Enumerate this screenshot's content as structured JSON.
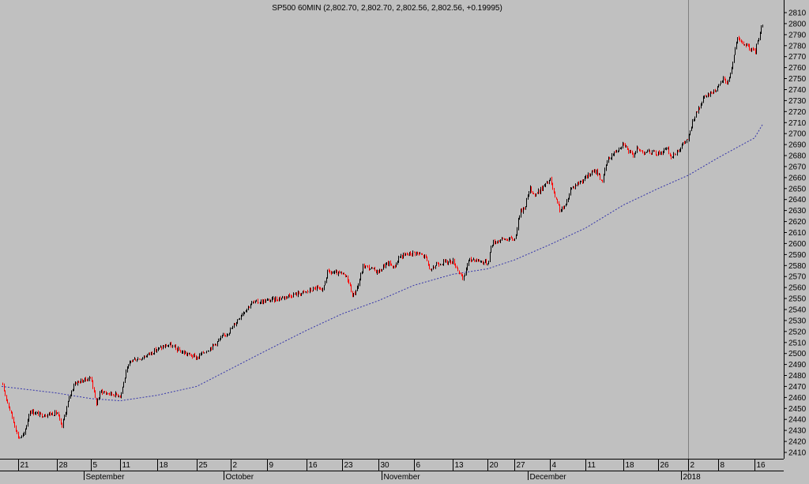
{
  "chart_data": {
    "type": "candlestick",
    "title": "SP500 60MIN (2,802.70, 2,802.70, 2,802.56, 2,802.56, +0.19995)",
    "xlabel": "",
    "ylabel": "",
    "ylim": [
      2410,
      2810
    ],
    "y_ticks": [
      2410,
      2420,
      2430,
      2440,
      2450,
      2460,
      2470,
      2480,
      2490,
      2500,
      2510,
      2520,
      2530,
      2540,
      2550,
      2560,
      2570,
      2580,
      2590,
      2600,
      2610,
      2620,
      2630,
      2640,
      2650,
      2660,
      2670,
      2680,
      2690,
      2700,
      2710,
      2720,
      2730,
      2740,
      2750,
      2760,
      2770,
      2780,
      2790,
      2800,
      2810
    ],
    "x_ticks": [
      {
        "date": "2017-08-21",
        "label": "21"
      },
      {
        "date": "2017-08-28",
        "label": "28"
      },
      {
        "date": "2017-09-05",
        "label": "5"
      },
      {
        "date": "2017-09-11",
        "label": "11"
      },
      {
        "date": "2017-09-18",
        "label": "18"
      },
      {
        "date": "2017-09-25",
        "label": "25"
      },
      {
        "date": "2017-10-02",
        "label": "2"
      },
      {
        "date": "2017-10-09",
        "label": "9"
      },
      {
        "date": "2017-10-16",
        "label": "16"
      },
      {
        "date": "2017-10-23",
        "label": "23"
      },
      {
        "date": "2017-10-30",
        "label": "30"
      },
      {
        "date": "2017-11-06",
        "label": "6"
      },
      {
        "date": "2017-11-13",
        "label": "13"
      },
      {
        "date": "2017-11-20",
        "label": "20"
      },
      {
        "date": "2017-11-27",
        "label": "27"
      },
      {
        "date": "2017-12-04",
        "label": "4"
      },
      {
        "date": "2017-12-11",
        "label": "11"
      },
      {
        "date": "2017-12-18",
        "label": "18"
      },
      {
        "date": "2017-12-26",
        "label": "26"
      },
      {
        "date": "2018-01-02",
        "label": "2"
      },
      {
        "date": "2018-01-08",
        "label": "8"
      },
      {
        "date": "2018-01-16",
        "label": "16"
      }
    ],
    "month_labels": [
      {
        "date": "2017-09-05",
        "label": "September"
      },
      {
        "date": "2017-10-02",
        "label": "October"
      },
      {
        "date": "2017-11-01",
        "label": "November"
      },
      {
        "date": "2017-12-01",
        "label": "December"
      },
      {
        "date": "2018-01-02",
        "label": "2018"
      }
    ],
    "vertical_marker_date": "2018-01-02",
    "grid": false,
    "colors": {
      "background": "#c0c0c0",
      "up": "#000000",
      "down": "#ff0000",
      "moving_average": "#3333aa",
      "axis": "#000000",
      "marker": "#808080"
    },
    "series": [
      {
        "name": "",
        "type": "candlestick",
        "close_path": [
          [
            "2017-08-18",
            2472
          ],
          [
            "2017-08-21",
            2423
          ],
          [
            "2017-08-22",
            2426
          ],
          [
            "2017-08-23",
            2448
          ],
          [
            "2017-08-25",
            2444
          ],
          [
            "2017-08-28",
            2446
          ],
          [
            "2017-08-29",
            2432
          ],
          [
            "2017-08-30",
            2448
          ],
          [
            "2017-08-31",
            2462
          ],
          [
            "2017-09-01",
            2473
          ],
          [
            "2017-09-05",
            2478
          ],
          [
            "2017-09-06",
            2454
          ],
          [
            "2017-09-07",
            2466
          ],
          [
            "2017-09-08",
            2464
          ],
          [
            "2017-09-11",
            2462
          ],
          [
            "2017-09-12",
            2482
          ],
          [
            "2017-09-13",
            2494
          ],
          [
            "2017-09-15",
            2496
          ],
          [
            "2017-09-18",
            2504
          ],
          [
            "2017-09-20",
            2508
          ],
          [
            "2017-09-22",
            2502
          ],
          [
            "2017-09-25",
            2496
          ],
          [
            "2017-09-26",
            2500
          ],
          [
            "2017-09-28",
            2506
          ],
          [
            "2017-10-02",
            2522
          ],
          [
            "2017-10-04",
            2536
          ],
          [
            "2017-10-06",
            2546
          ],
          [
            "2017-10-09",
            2548
          ],
          [
            "2017-10-11",
            2550
          ],
          [
            "2017-10-13",
            2553
          ],
          [
            "2017-10-16",
            2556
          ],
          [
            "2017-10-18",
            2560
          ],
          [
            "2017-10-19",
            2555
          ],
          [
            "2017-10-20",
            2574
          ],
          [
            "2017-10-23",
            2572
          ],
          [
            "2017-10-24",
            2568
          ],
          [
            "2017-10-25",
            2552
          ],
          [
            "2017-10-26",
            2562
          ],
          [
            "2017-10-27",
            2580
          ],
          [
            "2017-10-30",
            2574
          ],
          [
            "2017-10-31",
            2580
          ],
          [
            "2017-11-01",
            2582
          ],
          [
            "2017-11-02",
            2578
          ],
          [
            "2017-11-03",
            2588
          ],
          [
            "2017-11-06",
            2592
          ],
          [
            "2017-11-07",
            2590
          ],
          [
            "2017-11-08",
            2588
          ],
          [
            "2017-11-09",
            2574
          ],
          [
            "2017-11-10",
            2582
          ],
          [
            "2017-11-13",
            2584
          ],
          [
            "2017-11-14",
            2576
          ],
          [
            "2017-11-15",
            2566
          ],
          [
            "2017-11-16",
            2584
          ],
          [
            "2017-11-17",
            2586
          ],
          [
            "2017-11-20",
            2582
          ],
          [
            "2017-11-21",
            2600
          ],
          [
            "2017-11-22",
            2602
          ],
          [
            "2017-11-24",
            2604
          ],
          [
            "2017-11-27",
            2604
          ],
          [
            "2017-11-28",
            2628
          ],
          [
            "2017-11-29",
            2634
          ],
          [
            "2017-11-30",
            2650
          ],
          [
            "2017-12-01",
            2644
          ],
          [
            "2017-12-04",
            2658
          ],
          [
            "2017-12-05",
            2640
          ],
          [
            "2017-12-06",
            2630
          ],
          [
            "2017-12-07",
            2634
          ],
          [
            "2017-12-08",
            2650
          ],
          [
            "2017-12-11",
            2660
          ],
          [
            "2017-12-12",
            2664
          ],
          [
            "2017-12-13",
            2666
          ],
          [
            "2017-12-14",
            2656
          ],
          [
            "2017-12-15",
            2676
          ],
          [
            "2017-12-18",
            2692
          ],
          [
            "2017-12-19",
            2684
          ],
          [
            "2017-12-20",
            2680
          ],
          [
            "2017-12-21",
            2686
          ],
          [
            "2017-12-22",
            2684
          ],
          [
            "2017-12-26",
            2682
          ],
          [
            "2017-12-27",
            2684
          ],
          [
            "2017-12-28",
            2686
          ],
          [
            "2017-12-29",
            2678
          ],
          [
            "2018-01-02",
            2696
          ],
          [
            "2018-01-03",
            2714
          ],
          [
            "2018-01-04",
            2722
          ],
          [
            "2018-01-05",
            2732
          ],
          [
            "2018-01-08",
            2742
          ],
          [
            "2018-01-09",
            2750
          ],
          [
            "2018-01-10",
            2746
          ],
          [
            "2018-01-11",
            2762
          ],
          [
            "2018-01-12",
            2786
          ],
          [
            "2018-01-16",
            2774
          ],
          [
            "2018-01-17",
            2802
          ]
        ]
      },
      {
        "name": "",
        "type": "line",
        "style": "dotted",
        "points": [
          [
            "2017-08-18",
            2470
          ],
          [
            "2017-08-28",
            2464
          ],
          [
            "2017-09-05",
            2459
          ],
          [
            "2017-09-11",
            2457
          ],
          [
            "2017-09-18",
            2462
          ],
          [
            "2017-09-25",
            2470
          ],
          [
            "2017-10-02",
            2486
          ],
          [
            "2017-10-09",
            2503
          ],
          [
            "2017-10-16",
            2521
          ],
          [
            "2017-10-23",
            2536
          ],
          [
            "2017-10-30",
            2548
          ],
          [
            "2017-11-06",
            2562
          ],
          [
            "2017-11-13",
            2572
          ],
          [
            "2017-11-20",
            2577
          ],
          [
            "2017-11-27",
            2585
          ],
          [
            "2017-12-04",
            2599
          ],
          [
            "2017-12-11",
            2614
          ],
          [
            "2017-12-18",
            2635
          ],
          [
            "2017-12-26",
            2650
          ],
          [
            "2018-01-02",
            2662
          ],
          [
            "2018-01-08",
            2678
          ],
          [
            "2018-01-16",
            2696
          ],
          [
            "2018-01-17",
            2708
          ]
        ]
      }
    ]
  }
}
